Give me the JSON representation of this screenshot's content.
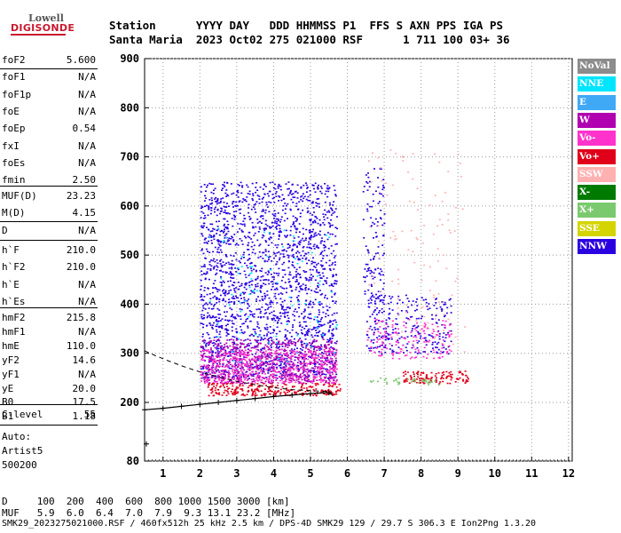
{
  "logo": {
    "top": "Lowell",
    "main": "DIGISONDE"
  },
  "header": {
    "line1": "Station      YYYY DAY   DDD HHMMSS P1  FFS S AXN PPS IGA PS",
    "line2": "Santa Maria  2023 Oct02 275 021000 RSF      1 711 100 03+ 36"
  },
  "params": [
    {
      "key": "foF2",
      "value": "5.600"
    },
    {
      "key": "foF1",
      "value": "N/A"
    },
    {
      "key": "foF1p",
      "value": "N/A"
    },
    {
      "key": "foE",
      "value": "N/A"
    },
    {
      "key": "foEp",
      "value": "0.54"
    },
    {
      "key": "fxI",
      "value": "N/A"
    },
    {
      "key": "foEs",
      "value": "N/A"
    },
    {
      "key": "fmin",
      "value": "2.50"
    },
    {
      "key": "MUF(D)",
      "value": "23.23"
    },
    {
      "key": "M(D)",
      "value": "4.15"
    },
    {
      "key": "D",
      "value": "N/A"
    },
    {
      "key": "h`F",
      "value": "210.0"
    },
    {
      "key": "h`F2",
      "value": "210.0"
    },
    {
      "key": "h`E",
      "value": "N/A"
    },
    {
      "key": "h`Es",
      "value": "N/A"
    },
    {
      "key": "hmF2",
      "value": "215.8"
    },
    {
      "key": "hmF1",
      "value": "N/A"
    },
    {
      "key": "hmE",
      "value": "110.0"
    },
    {
      "key": "yF2",
      "value": "14.6"
    },
    {
      "key": "yF1",
      "value": "N/A"
    },
    {
      "key": "yE",
      "value": "20.0"
    },
    {
      "key": "B0",
      "value": "17.5"
    },
    {
      "key": "B1",
      "value": "1.18"
    },
    {
      "key": "C-level",
      "value": "55"
    }
  ],
  "autoscaling": {
    "line1": "Auto:",
    "line2": "Artist5",
    "line3": "500200"
  },
  "legend": [
    {
      "label": "NoVal",
      "color": "#8c8c8c"
    },
    {
      "label": "NNE",
      "color": "#00e5ff"
    },
    {
      "label": "E",
      "color": "#3fa9f5"
    },
    {
      "label": "W",
      "color": "#b000b0"
    },
    {
      "label": "Vo-",
      "color": "#ff33cc"
    },
    {
      "label": "Vo+",
      "color": "#e0001a"
    },
    {
      "label": "SSW",
      "color": "#ffb0b0"
    },
    {
      "label": "X-",
      "color": "#007a00"
    },
    {
      "label": "X+",
      "color": "#7bc96f"
    },
    {
      "label": "SSE",
      "color": "#d4d400"
    },
    {
      "label": "NNW",
      "color": "#2a00e0"
    }
  ],
  "bottom": {
    "d_line": "D     100  200  400  600  800 1000 1500 3000 [km]",
    "muf_line": "MUF   5.9  6.0  6.4  7.0  7.9  9.3 13.1 23.2 [MHz]"
  },
  "footer": "SMK29_2023275021000.RSF / 460fx512h 25 kHz 2.5 km / DPS-4D SMK29 129 / 29.7 S 306.3 E Ion2Png 1.3.20",
  "chart_data": {
    "type": "scatter",
    "title": "",
    "xlabel": "",
    "ylabel": "",
    "xlim": [
      0.5,
      12.1
    ],
    "ylim": [
      80,
      900
    ],
    "x_ticks": [
      "1",
      "2",
      "3",
      "4",
      "5",
      "6",
      "7",
      "8",
      "9",
      "10",
      "11",
      "12"
    ],
    "y_ticks": [
      "80",
      "200",
      "300",
      "400",
      "500",
      "600",
      "700",
      "800",
      "900"
    ],
    "y_tick_values": [
      80,
      200,
      300,
      400,
      500,
      600,
      700,
      800,
      900
    ],
    "y_scale": "stretched (compressed below 200 km)",
    "grid": true,
    "echo_regions": [
      {
        "name": "NNW",
        "color": "#2a00e0",
        "x": [
          2.0,
          5.7
        ],
        "y": [
          250,
          650
        ],
        "count": 2200
      },
      {
        "name": "NNW",
        "color": "#2a00e0",
        "x": [
          6.4,
          7.0
        ],
        "y": [
          400,
          680
        ],
        "count": 120
      },
      {
        "name": "NNW",
        "color": "#2a00e0",
        "x": [
          6.5,
          8.8
        ],
        "y": [
          300,
          420
        ],
        "count": 260
      },
      {
        "name": "W",
        "color": "#b000b0",
        "x": [
          2.0,
          5.7
        ],
        "y": [
          240,
          330
        ],
        "count": 700
      },
      {
        "name": "Vo-",
        "color": "#ff33cc",
        "x": [
          2.0,
          5.7
        ],
        "y": [
          240,
          310
        ],
        "count": 500
      },
      {
        "name": "Vo-",
        "color": "#ff33cc",
        "x": [
          6.5,
          8.8
        ],
        "y": [
          290,
          370
        ],
        "count": 150
      },
      {
        "name": "SSW",
        "color": "#ffb0b0",
        "x": [
          6.5,
          9.2
        ],
        "y": [
          300,
          720
        ],
        "count": 120
      },
      {
        "name": "NNE",
        "color": "#00e5ff",
        "x": [
          2.2,
          5.7
        ],
        "y": [
          280,
          560
        ],
        "count": 80
      },
      {
        "name": "Vo+",
        "color": "#e0001a",
        "x": [
          2.2,
          5.8
        ],
        "y": [
          215,
          240
        ],
        "count": 260
      },
      {
        "name": "Vo+",
        "color": "#e0001a",
        "x": [
          7.5,
          9.3
        ],
        "y": [
          240,
          265
        ],
        "count": 120
      },
      {
        "name": "X+",
        "color": "#7bc96f",
        "x": [
          6.6,
          8.6
        ],
        "y": [
          237,
          252
        ],
        "count": 40
      }
    ],
    "fit_profile": {
      "x": [
        0.5,
        1.0,
        1.5,
        2.0,
        2.5,
        3.0,
        3.5,
        4.0,
        4.5,
        5.0,
        5.5,
        5.6
      ],
      "y": [
        185,
        188,
        192,
        196,
        200,
        204,
        208,
        212,
        215,
        218,
        220,
        215
      ]
    },
    "dashed_curve": {
      "x": [
        0.5,
        0.8,
        1.2,
        1.6,
        2.0,
        2.5,
        3.0,
        3.5,
        4.0,
        4.5,
        5.0,
        5.5
      ],
      "y": [
        305,
        295,
        283,
        272,
        262,
        252,
        243,
        236,
        230,
        226,
        224,
        222
      ]
    },
    "low_markers": {
      "x": [
        0.5
      ],
      "y": [
        115
      ]
    }
  }
}
